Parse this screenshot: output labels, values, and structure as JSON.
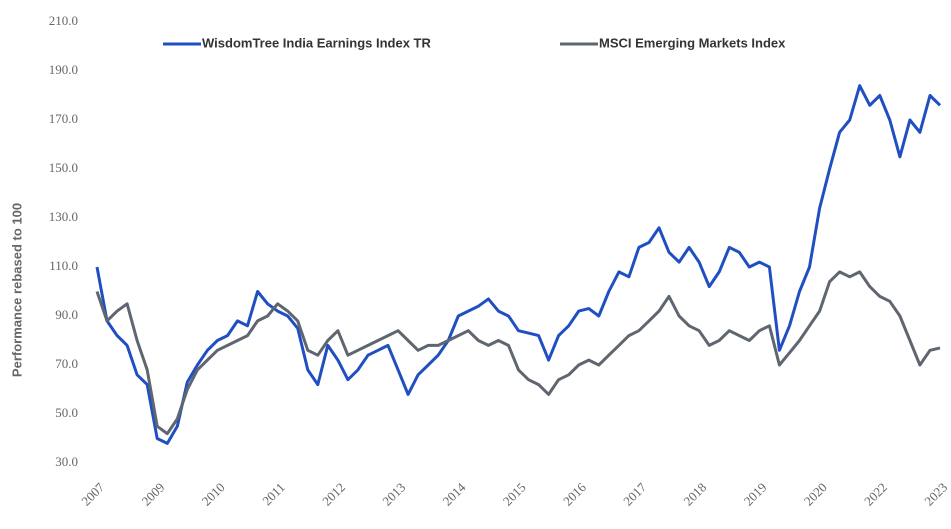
{
  "chart_data": {
    "type": "line",
    "ylabel": "Performance rebased to 100",
    "ylim": [
      30,
      210
    ],
    "yticks": [
      {
        "value": 30,
        "label": "30.0"
      },
      {
        "value": 50,
        "label": "50.0"
      },
      {
        "value": 70,
        "label": "70.0"
      },
      {
        "value": 90,
        "label": "90.0"
      },
      {
        "value": 110,
        "label": "110.0"
      },
      {
        "value": 130,
        "label": "130.0"
      },
      {
        "value": 150,
        "label": "150.0"
      },
      {
        "value": 170,
        "label": "170.0"
      },
      {
        "value": 190,
        "label": "190.0"
      },
      {
        "value": 210,
        "label": "210.0"
      }
    ],
    "grid": false,
    "legend": "top",
    "categories": [
      "2007",
      null,
      null,
      null,
      null,
      null,
      "2009",
      null,
      null,
      null,
      null,
      null,
      "2010",
      null,
      null,
      null,
      null,
      null,
      "2011",
      null,
      null,
      null,
      null,
      null,
      "2012",
      null,
      null,
      null,
      null,
      null,
      "2013",
      null,
      null,
      null,
      null,
      null,
      "2014",
      null,
      null,
      null,
      null,
      null,
      "2015",
      null,
      null,
      null,
      null,
      null,
      "2016",
      null,
      null,
      null,
      null,
      null,
      "2017",
      null,
      null,
      null,
      null,
      null,
      "2018",
      null,
      null,
      null,
      null,
      null,
      "2019",
      null,
      null,
      null,
      null,
      null,
      "2020",
      null,
      null,
      null,
      null,
      null,
      "2022",
      null,
      null,
      null,
      null,
      null,
      "2023"
    ],
    "series": [
      {
        "name": "WisdomTree India Earnings Index TR",
        "color": "#1f4fc0",
        "values": [
          110,
          88,
          82,
          78,
          66,
          62,
          40,
          38,
          45,
          63,
          70,
          76,
          80,
          82,
          88,
          86,
          100,
          95,
          92,
          90,
          85,
          68,
          62,
          78,
          72,
          64,
          68,
          74,
          76,
          78,
          68,
          58,
          66,
          70,
          74,
          80,
          90,
          92,
          94,
          97,
          92,
          90,
          84,
          83,
          82,
          72,
          82,
          86,
          92,
          93,
          90,
          100,
          108,
          106,
          118,
          120,
          126,
          116,
          112,
          118,
          112,
          102,
          108,
          118,
          116,
          110,
          112,
          110,
          76,
          86,
          100,
          110,
          134,
          150,
          165,
          170,
          184,
          176,
          180,
          170,
          155,
          170,
          165,
          180,
          176
        ]
      },
      {
        "name": "MSCI Emerging Markets Index",
        "color": "#5f6670",
        "values": [
          100,
          88,
          92,
          95,
          80,
          68,
          45,
          42,
          48,
          60,
          68,
          72,
          76,
          78,
          80,
          82,
          88,
          90,
          95,
          92,
          88,
          76,
          74,
          80,
          84,
          74,
          76,
          78,
          80,
          82,
          84,
          80,
          76,
          78,
          78,
          80,
          82,
          84,
          80,
          78,
          80,
          78,
          68,
          64,
          62,
          58,
          64,
          66,
          70,
          72,
          70,
          74,
          78,
          82,
          84,
          88,
          92,
          98,
          90,
          86,
          84,
          78,
          80,
          84,
          82,
          80,
          84,
          86,
          70,
          75,
          80,
          86,
          92,
          104,
          108,
          106,
          108,
          102,
          98,
          96,
          90,
          80,
          70,
          76,
          77
        ]
      }
    ]
  }
}
